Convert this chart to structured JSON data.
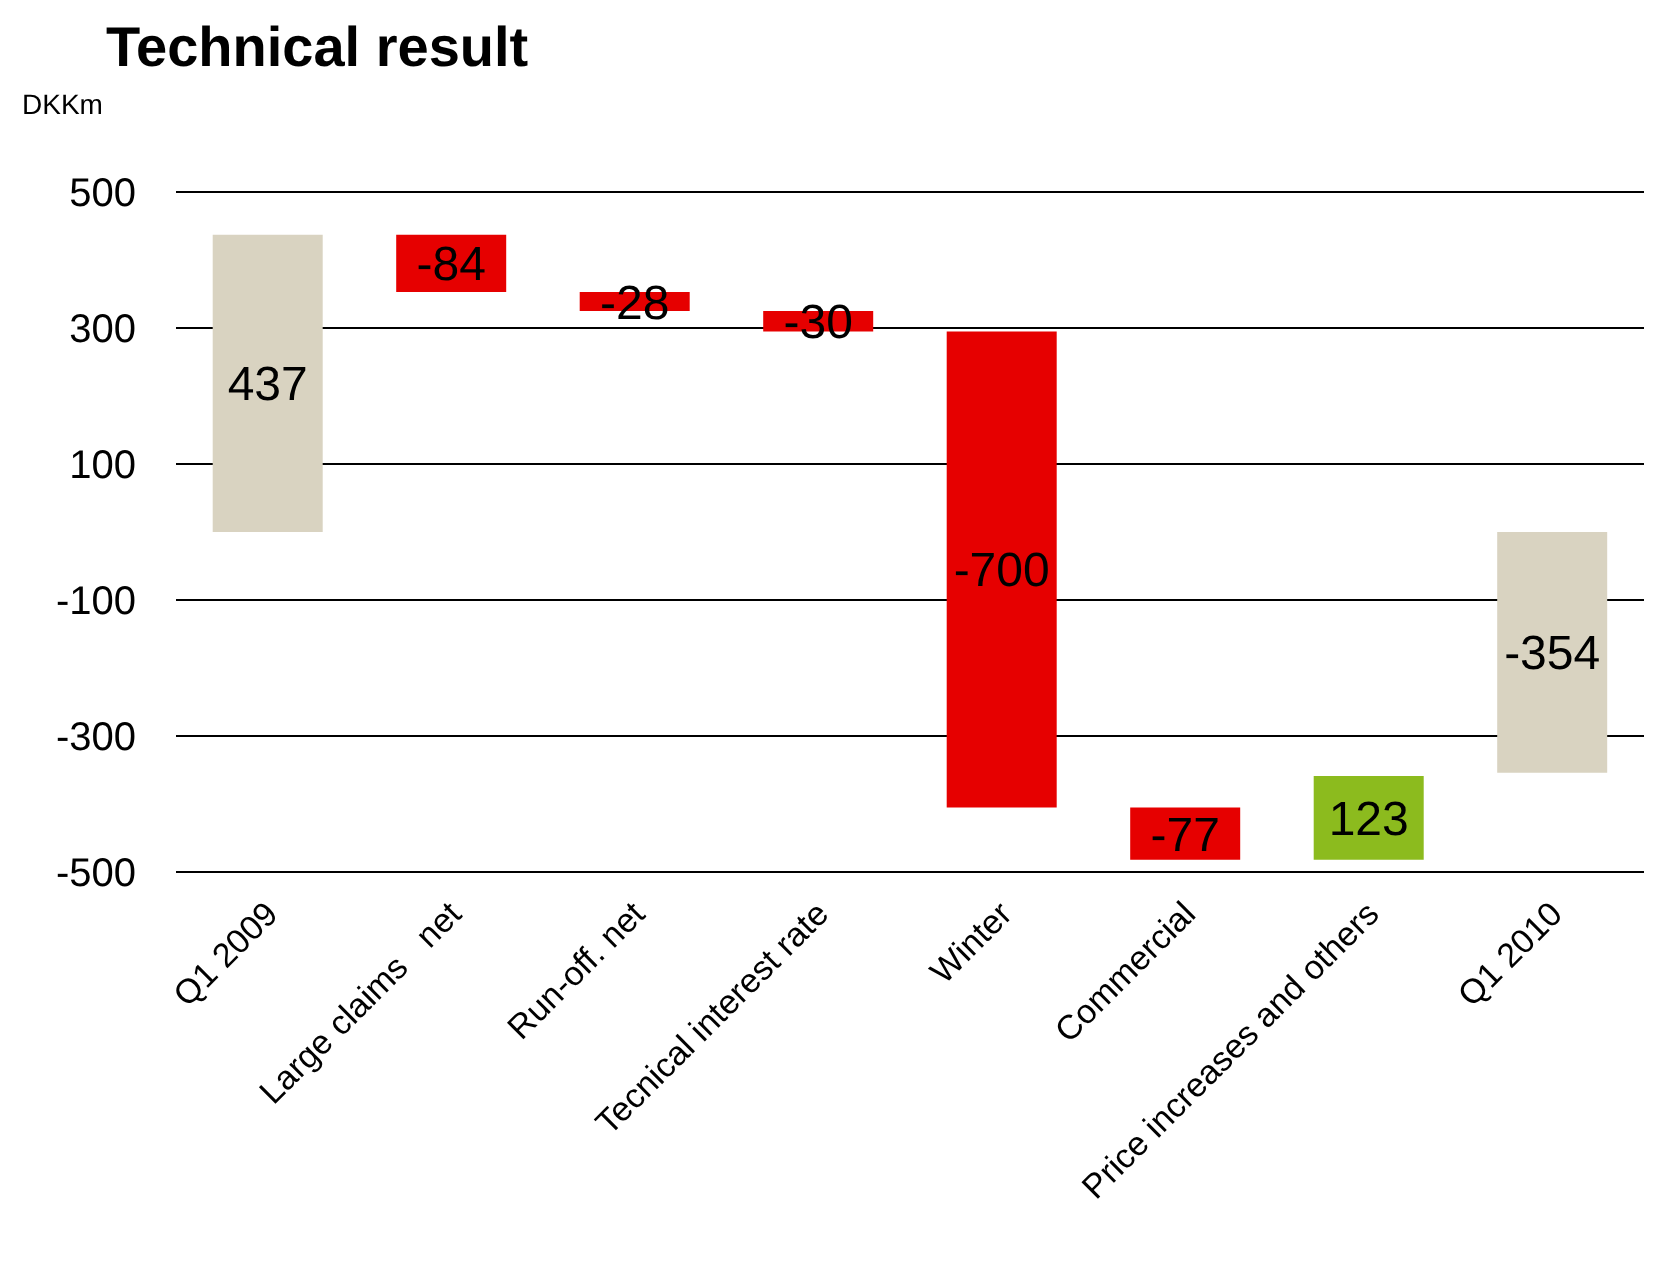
{
  "chart_data": {
    "type": "bar",
    "title": "Technical result",
    "ylabel": "DKKm",
    "categories": [
      "Q1 2009",
      "Large claims   net",
      "Run-off. net",
      "Tecnical interest rate",
      "Winter",
      "Commercial",
      "Price increases and others",
      "Q1 2010"
    ],
    "values": [
      437,
      -84,
      -28,
      -30,
      -700,
      -77,
      123,
      -354
    ],
    "base": [
      0,
      437,
      353,
      325,
      295,
      -405,
      -482,
      0
    ],
    "colors": [
      "#d9d3c1",
      "#e60000",
      "#e60000",
      "#e60000",
      "#e60000",
      "#e60000",
      "#8cbb1e",
      "#d9d3c1"
    ],
    "ylim": [
      -500,
      500
    ],
    "yticks": [
      -500,
      -300,
      -100,
      100,
      300,
      500
    ],
    "grid": "y",
    "data_labels": true,
    "legend": false
  }
}
